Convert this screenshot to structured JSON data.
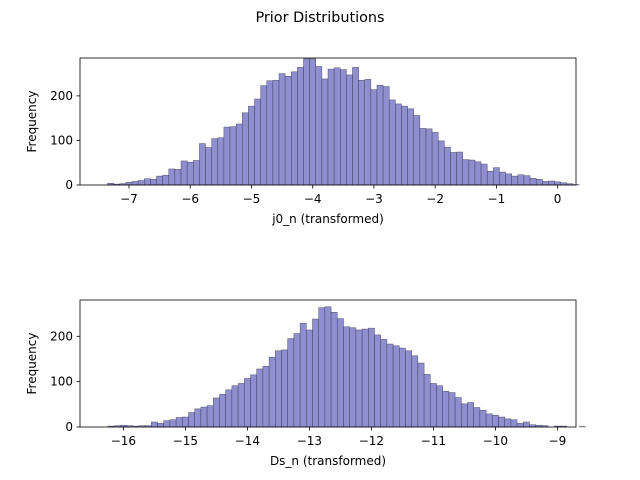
{
  "title": "Prior Distributions",
  "colors": {
    "bar_fill": "#8f8fcf",
    "bar_edge": "#33334d"
  },
  "chart_data": [
    {
      "type": "bar",
      "subtype": "histogram",
      "xlabel": "j0_n (transformed)",
      "ylabel": "Frequency",
      "xlim": [
        -7.8,
        0.3
      ],
      "ylim": [
        0,
        285
      ],
      "xticks": [
        -7,
        -6,
        -5,
        -4,
        -3,
        -2,
        -1,
        0
      ],
      "yticks": [
        0,
        100,
        200
      ],
      "bin_start": -7.35,
      "bin_width": 0.1,
      "values": [
        4,
        2,
        3,
        6,
        8,
        10,
        14,
        13,
        20,
        22,
        36,
        35,
        54,
        51,
        55,
        93,
        84,
        104,
        106,
        130,
        131,
        137,
        162,
        177,
        193,
        223,
        234,
        235,
        250,
        244,
        254,
        264,
        283,
        283,
        266,
        238,
        260,
        263,
        259,
        247,
        264,
        235,
        237,
        214,
        224,
        221,
        191,
        182,
        177,
        171,
        156,
        127,
        126,
        118,
        99,
        85,
        73,
        74,
        57,
        56,
        52,
        47,
        31,
        39,
        29,
        25,
        20,
        23,
        21,
        15,
        13,
        8,
        9,
        7,
        5,
        3,
        1,
        0,
        0,
        0,
        0,
        0,
        0,
        0,
        0,
        0,
        0,
        0,
        1
      ]
    },
    {
      "type": "bar",
      "subtype": "histogram",
      "xlabel": "Ds_n (transformed)",
      "ylabel": "Frequency",
      "xlim": [
        -16.7,
        -8.7
      ],
      "ylim": [
        0,
        280
      ],
      "xticks": [
        -16,
        -15,
        -14,
        -13,
        -12,
        -11,
        -10,
        -9
      ],
      "yticks": [
        0,
        100,
        200
      ],
      "bin_start": -16.25,
      "bin_width": 0.1,
      "values": [
        2,
        3,
        4,
        3,
        2,
        3,
        3,
        11,
        8,
        14,
        16,
        21,
        22,
        32,
        40,
        44,
        47,
        64,
        72,
        82,
        91,
        96,
        107,
        115,
        128,
        134,
        154,
        168,
        170,
        195,
        206,
        229,
        214,
        238,
        263,
        265,
        253,
        239,
        221,
        219,
        214,
        216,
        218,
        203,
        193,
        183,
        179,
        174,
        168,
        157,
        141,
        116,
        96,
        91,
        79,
        76,
        65,
        51,
        54,
        43,
        37,
        29,
        26,
        22,
        18,
        16,
        8,
        11,
        5,
        4,
        3,
        0,
        2,
        2,
        0,
        0,
        1,
        0,
        0,
        0,
        0,
        0,
        0,
        0,
        0,
        0,
        0,
        0,
        0,
        0,
        1
      ]
    }
  ]
}
